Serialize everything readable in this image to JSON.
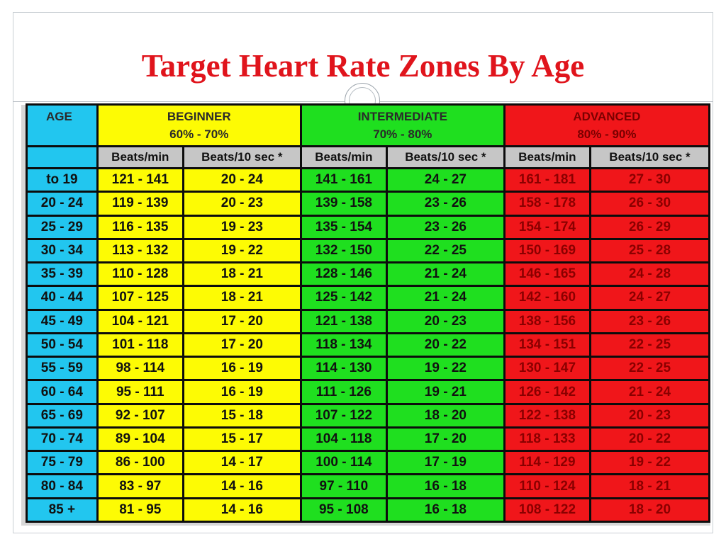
{
  "slide": {
    "title": "Target Heart Rate Zones By Age"
  },
  "table": {
    "age_header": "AGE",
    "zones": [
      {
        "label": "BEGINNER",
        "range": "60% - 70%"
      },
      {
        "label": "INTERMEDIATE",
        "range": "70% - 80%"
      },
      {
        "label": "ADVANCED",
        "range": "80% - 90%"
      }
    ],
    "sub_headers": [
      "Beats/min",
      "Beats/10 sec *",
      "Beats/min",
      "Beats/10 sec *",
      "Beats/min",
      "Beats/10 sec *"
    ],
    "rows": [
      {
        "age": "to 19",
        "values": [
          "121 - 141",
          "20 - 24",
          "141 - 161",
          "24 - 27",
          "161 - 181",
          "27 - 30"
        ]
      },
      {
        "age": "20 - 24",
        "values": [
          "119 - 139",
          "20 - 23",
          "139 - 158",
          "23 - 26",
          "158 - 178",
          "26 - 30"
        ]
      },
      {
        "age": "25 - 29",
        "values": [
          "116 - 135",
          "19 - 23",
          "135 - 154",
          "23 - 26",
          "154 - 174",
          "26 - 29"
        ]
      },
      {
        "age": "30 - 34",
        "values": [
          "113 - 132",
          "19 - 22",
          "132 - 150",
          "22 - 25",
          "150 - 169",
          "25 - 28"
        ]
      },
      {
        "age": "35 - 39",
        "values": [
          "110 - 128",
          "18 - 21",
          "128 - 146",
          "21 - 24",
          "146 - 165",
          "24 - 28"
        ]
      },
      {
        "age": "40 - 44",
        "values": [
          "107 - 125",
          "18 - 21",
          "125 - 142",
          "21 - 24",
          "142 - 160",
          "24 - 27"
        ]
      },
      {
        "age": "45 - 49",
        "values": [
          "104 - 121",
          "17 - 20",
          "121 - 138",
          "20 - 23",
          "138 - 156",
          "23 - 26"
        ]
      },
      {
        "age": "50 - 54",
        "values": [
          "101 - 118",
          "17 - 20",
          "118 - 134",
          "20 - 22",
          "134 - 151",
          "22 - 25"
        ]
      },
      {
        "age": "55 - 59",
        "values": [
          "98 - 114",
          "16 - 19",
          "114 - 130",
          "19 - 22",
          "130 - 147",
          "22 - 25"
        ]
      },
      {
        "age": "60 - 64",
        "values": [
          "95 - 111",
          "16 - 19",
          "111 - 126",
          "19 - 21",
          "126 - 142",
          "21 - 24"
        ]
      },
      {
        "age": "65 - 69",
        "values": [
          "92 - 107",
          "15 - 18",
          "107 - 122",
          "18 - 20",
          "122 - 138",
          "20 - 23"
        ]
      },
      {
        "age": "70 - 74",
        "values": [
          "89 - 104",
          "15 - 17",
          "104 - 118",
          "17 - 20",
          "118 - 133",
          "20 - 22"
        ]
      },
      {
        "age": "75 - 79",
        "values": [
          "86 - 100",
          "14 - 17",
          "100 - 114",
          "17 - 19",
          "114 - 129",
          "19 - 22"
        ]
      },
      {
        "age": "80 - 84",
        "values": [
          "83 - 97",
          "14 - 16",
          "97 - 110",
          "16 - 18",
          "110 - 124",
          "18 - 21"
        ]
      },
      {
        "age": "85 +",
        "values": [
          "81 - 95",
          "14 - 16",
          "95 - 108",
          "16 - 18",
          "108 - 122",
          "18 - 20"
        ]
      }
    ]
  },
  "colors": {
    "title": "#e0141c",
    "age": "#22c6ef",
    "beginner": "#fdfb04",
    "intermediate": "#1fdf1f",
    "advanced": "#f0161a",
    "subheader": "#c6c6c6"
  }
}
